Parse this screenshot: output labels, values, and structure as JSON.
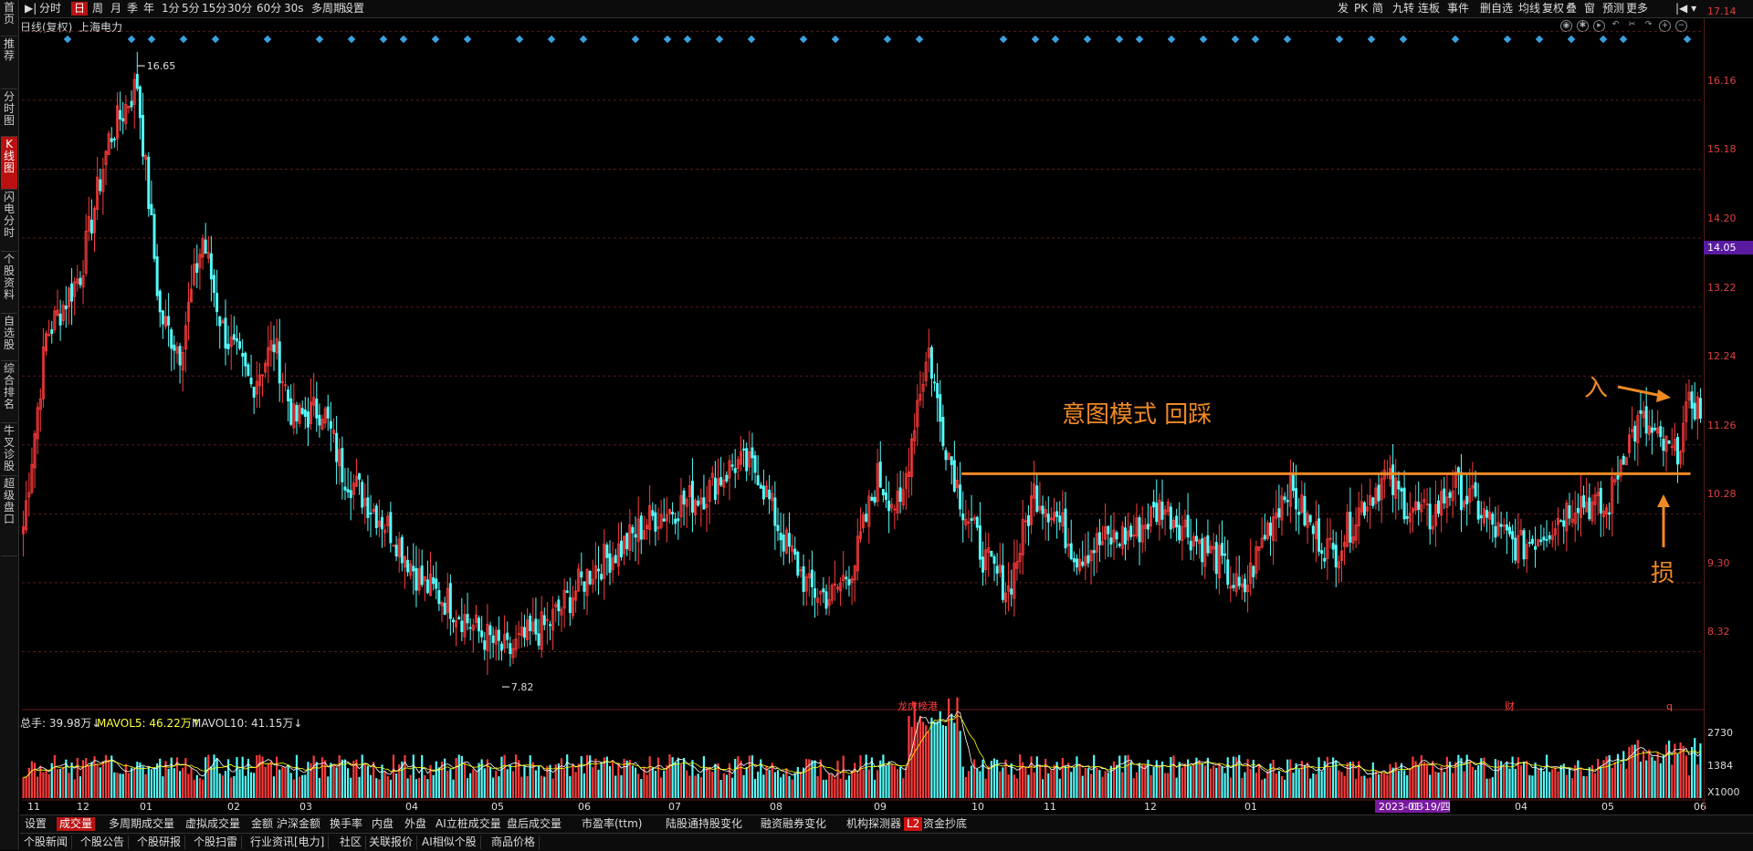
{
  "toolbar": {
    "left_items": [
      "分时",
      "日",
      "周",
      "月",
      "季",
      "年",
      "1分",
      "5分",
      "15分",
      "30分",
      "60分",
      "30s",
      "多周期",
      "设置"
    ],
    "active": "日",
    "right_items": [
      "发",
      "PK",
      "简",
      "九转",
      "连板",
      "事件",
      "删自选",
      "均线",
      "复权",
      "叠",
      "窗",
      "预测",
      "更多"
    ]
  },
  "left_tabs": [
    "首页",
    "推荐",
    "分时图",
    "K线图",
    "闪电分时",
    "个股资料",
    "自选股",
    "综合排名",
    "牛叉诊股",
    "超级盘口"
  ],
  "left_tabs_active": "K线图",
  "chart_header": {
    "mode": "日线(复权)",
    "stock_name": "上海电力"
  },
  "annotations": {
    "pattern": "意图模式 回踩",
    "entry": "入",
    "stop": "损"
  },
  "volume_header": {
    "total": "总手: 39.98万↓",
    "mavol5": "MAVOL5: 46.22万↑",
    "mavol10": "MAVOL10: 41.15万↓"
  },
  "event_markers": [
    "龙虎榜",
    "港",
    "财",
    "q"
  ],
  "current_price_label": "14.05",
  "highlight_date": "2023-01-19/四",
  "indicator_tabs": [
    "设置",
    "成交量",
    "多周期成交量",
    "虚拟成交量",
    "金额",
    "沪深金额",
    "换手率",
    "内盘",
    "外盘",
    "AI立桩成交量",
    "盘后成交量",
    "市盈率(ttm)",
    "陆股通持股变化",
    "融资融券变化",
    "机构探测器",
    "L2",
    "资金抄底"
  ],
  "indicator_active": "成交量",
  "news_tabs": [
    "个股新闻",
    "个股公告",
    "个股研报",
    "个股扫雷",
    "行业资讯[电力]",
    "社区",
    "关联报价",
    "AI相似个股",
    "商品价格"
  ],
  "colors": {
    "up": "#ff3b3b",
    "down": "#54fcfc",
    "annotation": "#f08a24",
    "grid": "#5a1a1a",
    "ma5": "#ffffff",
    "ma10": "#ffff00"
  },
  "chart_data": {
    "type": "candlestick",
    "title": "日线(复权) 上海电力",
    "price_axis_ticks": [
      "17.14",
      "16.16",
      "15.18",
      "14.20",
      "13.22",
      "12.24",
      "11.26",
      "10.28",
      "9.30",
      "8.32"
    ],
    "volume_axis_ticks": [
      "2730",
      "1384",
      "X1000"
    ],
    "x_tick_labels": [
      "11",
      "12",
      "01",
      "02",
      "03",
      "04",
      "05",
      "06",
      "07",
      "08",
      "09",
      "10",
      "11",
      "12",
      "01",
      "2023-01-19/四",
      "03",
      "04",
      "05",
      "06"
    ],
    "max_label": "16.65",
    "min_label": "7.82",
    "ylim": [
      7.6,
      17.3
    ],
    "support_level": 10.85,
    "price_path_knots": [
      [
        0,
        10.1
      ],
      [
        8,
        12.8
      ],
      [
        20,
        13.7
      ],
      [
        30,
        15.6
      ],
      [
        40,
        16.4
      ],
      [
        48,
        13.1
      ],
      [
        55,
        12.6
      ],
      [
        63,
        14.2
      ],
      [
        70,
        12.9
      ],
      [
        80,
        12.1
      ],
      [
        88,
        12.7
      ],
      [
        95,
        11.6
      ],
      [
        105,
        11.8
      ],
      [
        112,
        10.9
      ],
      [
        120,
        10.5
      ],
      [
        130,
        10.0
      ],
      [
        140,
        9.3
      ],
      [
        150,
        9.0
      ],
      [
        160,
        8.6
      ],
      [
        170,
        8.3
      ],
      [
        176,
        8.5
      ],
      [
        184,
        8.7
      ],
      [
        190,
        9.0
      ],
      [
        200,
        9.5
      ],
      [
        210,
        9.8
      ],
      [
        220,
        10.2
      ],
      [
        230,
        10.4
      ],
      [
        240,
        10.6
      ],
      [
        250,
        11.0
      ],
      [
        258,
        10.9
      ],
      [
        266,
        10.0
      ],
      [
        276,
        9.2
      ],
      [
        284,
        9.1
      ],
      [
        292,
        9.6
      ],
      [
        300,
        10.8
      ],
      [
        308,
        10.3
      ],
      [
        314,
        11.9
      ],
      [
        318,
        12.6
      ],
      [
        322,
        11.6
      ],
      [
        330,
        10.4
      ],
      [
        338,
        9.6
      ],
      [
        346,
        9.2
      ],
      [
        355,
        10.6
      ],
      [
        362,
        10.3
      ],
      [
        370,
        9.7
      ],
      [
        380,
        9.9
      ],
      [
        390,
        10.0
      ],
      [
        400,
        10.4
      ],
      [
        410,
        10.0
      ],
      [
        420,
        9.6
      ],
      [
        428,
        9.1
      ],
      [
        436,
        10.0
      ],
      [
        444,
        10.7
      ],
      [
        452,
        10.1
      ],
      [
        460,
        9.7
      ],
      [
        470,
        10.4
      ],
      [
        478,
        10.8
      ],
      [
        486,
        10.4
      ],
      [
        494,
        10.2
      ],
      [
        502,
        10.7
      ],
      [
        510,
        10.4
      ],
      [
        518,
        10.0
      ],
      [
        526,
        9.8
      ],
      [
        536,
        10.1
      ],
      [
        546,
        10.5
      ],
      [
        556,
        10.3
      ],
      [
        562,
        11.2
      ],
      [
        568,
        11.6
      ],
      [
        574,
        11.3
      ],
      [
        580,
        11.1
      ],
      [
        586,
        11.9
      ],
      [
        590,
        11.7
      ]
    ],
    "series_shown": [
      "K-line candles",
      "volume bars",
      "MAVOL5",
      "MAVOL10"
    ]
  }
}
